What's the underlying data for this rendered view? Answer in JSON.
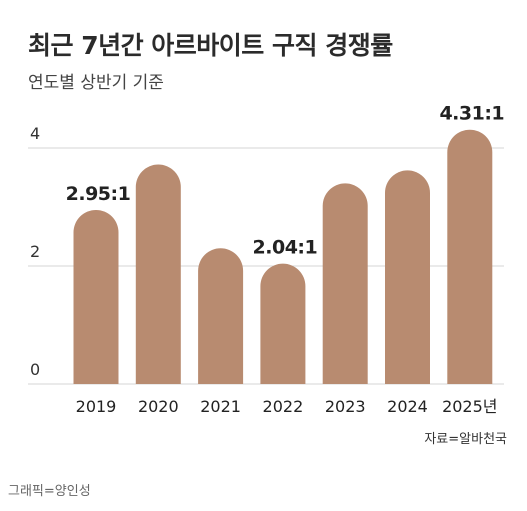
{
  "title": "최근 7년간 아르바이트 구직 경쟁률",
  "subtitle": "연도별 상반기 기준",
  "source": "자료=알바천국",
  "credit": "그래픽=양인성",
  "colors": {
    "bar": "#b88b70",
    "grid": "#d5d5d5",
    "text": "#222222"
  },
  "chart_data": {
    "type": "bar",
    "categories": [
      "2019",
      "2020",
      "2021",
      "2022",
      "2023",
      "2024",
      "2025년"
    ],
    "values": [
      2.95,
      3.72,
      2.3,
      2.04,
      3.4,
      3.62,
      4.31
    ],
    "data_labels": [
      "2.95:1",
      "",
      "",
      "2.04:1",
      "",
      "",
      "4.31:1"
    ],
    "ylim": [
      0,
      4.9
    ],
    "yticks": [
      0,
      2,
      4
    ],
    "ytick_labels": [
      "0",
      "2",
      "4"
    ],
    "grid": true,
    "xlabel": "",
    "ylabel": ""
  }
}
